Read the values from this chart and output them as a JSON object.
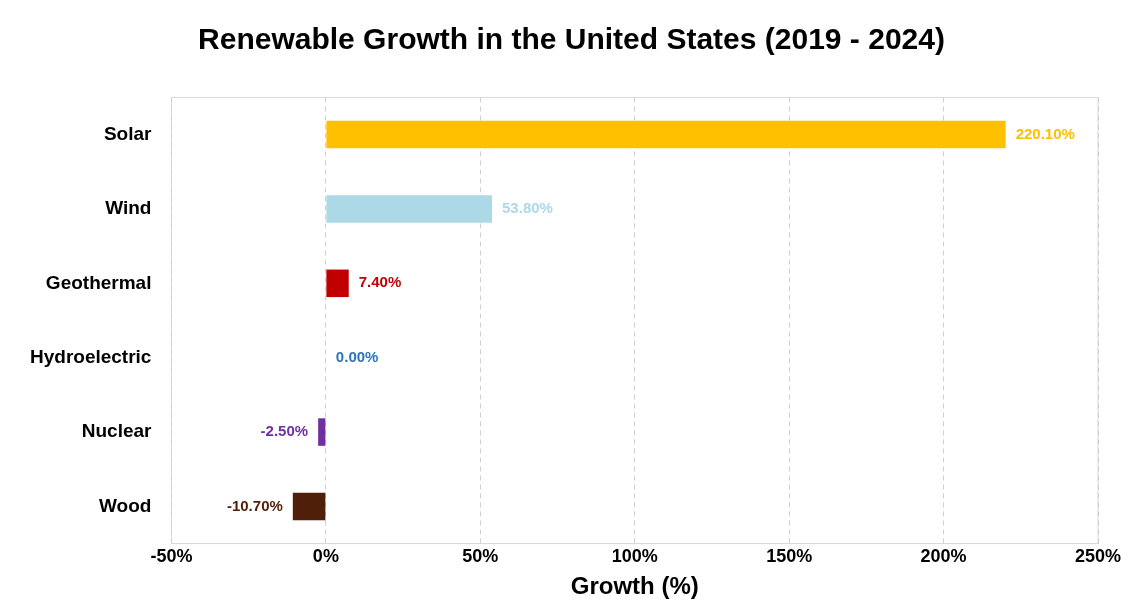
{
  "chart_data": {
    "type": "bar",
    "orientation": "horizontal",
    "title": "Renewable Growth in the United States (2019 - 2024)",
    "xlabel": "Growth (%)",
    "categories": [
      "Solar",
      "Wind",
      "Geothermal",
      "Hydroelectric",
      "Nuclear",
      "Wood"
    ],
    "values": [
      220.1,
      53.8,
      7.4,
      0,
      -2.5,
      -10.7
    ],
    "colors": [
      "#ffc000",
      "#add8e6",
      "#c00000",
      "#2e75b6",
      "#7030a0",
      "#4f1f0a"
    ],
    "value_labels": [
      "220.10%",
      "53.80%",
      "7.40%",
      "0.00%",
      "-2.50%",
      "-10.70%"
    ],
    "xlim": [
      -50,
      250
    ],
    "xticks": [
      {
        "value": -50,
        "label": "-50%"
      },
      {
        "value": 0,
        "label": "0%"
      },
      {
        "value": 50,
        "label": "50%"
      },
      {
        "value": 100,
        "label": "100%"
      },
      {
        "value": 150,
        "label": "150%"
      },
      {
        "value": 200,
        "label": "200%"
      },
      {
        "value": 250,
        "label": "250%"
      }
    ],
    "grid": "x"
  }
}
